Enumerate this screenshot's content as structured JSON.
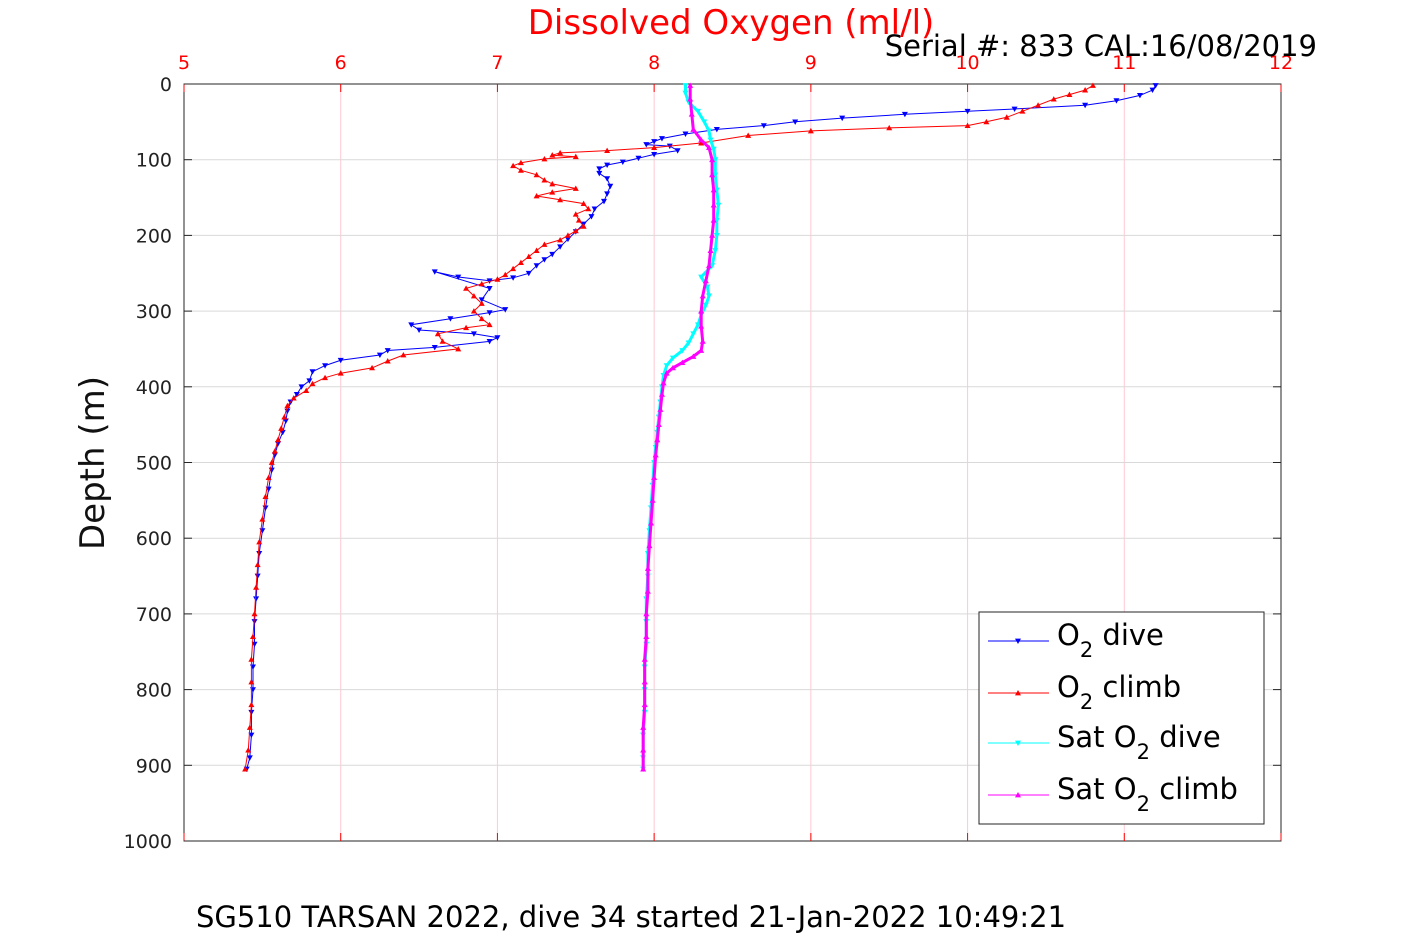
{
  "chart_data": {
    "type": "scatter",
    "title": "Dissolved Oxygen (ml/l)",
    "serial_label": "Serial #: 833  CAL:16/08/2019",
    "ylabel": "Depth (m)",
    "xlabel": "",
    "footer": "SG510 TARSAN 2022, dive 34 started 21-Jan-2022 10:49:21",
    "xlim": [
      5,
      12
    ],
    "ylim": [
      0,
      1000
    ],
    "y_reversed": true,
    "x_axis_position": "top",
    "x_ticks": [
      "5",
      "6",
      "7",
      "8",
      "9",
      "10",
      "11",
      "12"
    ],
    "y_ticks": [
      "0",
      "100",
      "200",
      "300",
      "400",
      "500",
      "600",
      "700",
      "800",
      "900",
      "1000"
    ],
    "x_grid_color": "#ffc8d4",
    "y_grid_color": "#d9d9d9",
    "legend_position": "bottom-right",
    "series": [
      {
        "name": "O2 dive",
        "legend_main": "O",
        "legend_sub": "2",
        "legend_rest": " dive",
        "color": "#0000ff",
        "marker": "triangle-down",
        "points": [
          [
            11.2,
            2
          ],
          [
            11.18,
            8
          ],
          [
            11.1,
            15
          ],
          [
            10.95,
            22
          ],
          [
            10.75,
            28
          ],
          [
            10.3,
            33
          ],
          [
            10.0,
            36
          ],
          [
            9.6,
            40
          ],
          [
            9.2,
            45
          ],
          [
            8.9,
            50
          ],
          [
            8.7,
            55
          ],
          [
            8.4,
            60
          ],
          [
            8.2,
            66
          ],
          [
            8.05,
            72
          ],
          [
            8.0,
            76
          ],
          [
            7.95,
            80
          ],
          [
            8.1,
            82
          ],
          [
            8.15,
            88
          ],
          [
            8.0,
            93
          ],
          [
            7.9,
            98
          ],
          [
            7.8,
            103
          ],
          [
            7.7,
            107
          ],
          [
            7.65,
            112
          ],
          [
            7.65,
            118
          ],
          [
            7.7,
            125
          ],
          [
            7.72,
            135
          ],
          [
            7.7,
            145
          ],
          [
            7.68,
            155
          ],
          [
            7.62,
            165
          ],
          [
            7.6,
            175
          ],
          [
            7.55,
            185
          ],
          [
            7.5,
            195
          ],
          [
            7.45,
            205
          ],
          [
            7.4,
            215
          ],
          [
            7.35,
            225
          ],
          [
            7.3,
            232
          ],
          [
            7.25,
            240
          ],
          [
            7.2,
            250
          ],
          [
            7.1,
            256
          ],
          [
            6.95,
            260
          ],
          [
            6.75,
            255
          ],
          [
            6.6,
            248
          ],
          [
            6.95,
            270
          ],
          [
            6.9,
            285
          ],
          [
            7.05,
            298
          ],
          [
            6.95,
            302
          ],
          [
            6.7,
            310
          ],
          [
            6.45,
            318
          ],
          [
            6.5,
            325
          ],
          [
            6.85,
            330
          ],
          [
            7.0,
            335
          ],
          [
            6.95,
            340
          ],
          [
            6.6,
            348
          ],
          [
            6.3,
            352
          ],
          [
            6.25,
            358
          ],
          [
            6.0,
            365
          ],
          [
            5.9,
            372
          ],
          [
            5.82,
            380
          ],
          [
            5.8,
            392
          ],
          [
            5.75,
            400
          ],
          [
            5.72,
            410
          ],
          [
            5.68,
            420
          ],
          [
            5.66,
            432
          ],
          [
            5.65,
            445
          ],
          [
            5.63,
            460
          ],
          [
            5.6,
            475
          ],
          [
            5.58,
            490
          ],
          [
            5.56,
            510
          ],
          [
            5.54,
            535
          ],
          [
            5.52,
            560
          ],
          [
            5.5,
            590
          ],
          [
            5.48,
            620
          ],
          [
            5.47,
            650
          ],
          [
            5.46,
            680
          ],
          [
            5.45,
            710
          ],
          [
            5.45,
            740
          ],
          [
            5.44,
            770
          ],
          [
            5.44,
            800
          ],
          [
            5.43,
            830
          ],
          [
            5.43,
            860
          ],
          [
            5.42,
            890
          ],
          [
            5.4,
            905
          ]
        ]
      },
      {
        "name": "O2 climb",
        "legend_main": "O",
        "legend_sub": "2",
        "legend_rest": " climb",
        "color": "#ff0000",
        "marker": "triangle-up",
        "points": [
          [
            10.8,
            2
          ],
          [
            10.75,
            8
          ],
          [
            10.65,
            14
          ],
          [
            10.55,
            20
          ],
          [
            10.45,
            28
          ],
          [
            10.35,
            36
          ],
          [
            10.25,
            44
          ],
          [
            10.12,
            50
          ],
          [
            10.0,
            55
          ],
          [
            9.5,
            58
          ],
          [
            9.0,
            62
          ],
          [
            8.6,
            68
          ],
          [
            8.3,
            78
          ],
          [
            8.0,
            84
          ],
          [
            7.7,
            88
          ],
          [
            7.4,
            91
          ],
          [
            7.35,
            94
          ],
          [
            7.5,
            96
          ],
          [
            7.3,
            99
          ],
          [
            7.15,
            104
          ],
          [
            7.1,
            108
          ],
          [
            7.15,
            114
          ],
          [
            7.25,
            120
          ],
          [
            7.3,
            127
          ],
          [
            7.35,
            132
          ],
          [
            7.5,
            138
          ],
          [
            7.35,
            143
          ],
          [
            7.25,
            148
          ],
          [
            7.4,
            153
          ],
          [
            7.55,
            158
          ],
          [
            7.58,
            165
          ],
          [
            7.5,
            172
          ],
          [
            7.52,
            180
          ],
          [
            7.55,
            188
          ],
          [
            7.5,
            194
          ],
          [
            7.45,
            200
          ],
          [
            7.4,
            206
          ],
          [
            7.3,
            212
          ],
          [
            7.25,
            220
          ],
          [
            7.2,
            228
          ],
          [
            7.15,
            236
          ],
          [
            7.1,
            244
          ],
          [
            7.05,
            252
          ],
          [
            7.0,
            258
          ],
          [
            6.9,
            264
          ],
          [
            6.8,
            270
          ],
          [
            6.85,
            280
          ],
          [
            6.9,
            290
          ],
          [
            6.85,
            300
          ],
          [
            6.9,
            310
          ],
          [
            6.95,
            318
          ],
          [
            6.8,
            322
          ],
          [
            6.62,
            330
          ],
          [
            6.65,
            340
          ],
          [
            6.75,
            350
          ],
          [
            6.4,
            358
          ],
          [
            6.3,
            366
          ],
          [
            6.2,
            375
          ],
          [
            6.0,
            382
          ],
          [
            5.9,
            388
          ],
          [
            5.82,
            396
          ],
          [
            5.78,
            405
          ],
          [
            5.7,
            415
          ],
          [
            5.66,
            425
          ],
          [
            5.64,
            440
          ],
          [
            5.62,
            455
          ],
          [
            5.6,
            470
          ],
          [
            5.58,
            485
          ],
          [
            5.56,
            500
          ],
          [
            5.54,
            520
          ],
          [
            5.52,
            545
          ],
          [
            5.5,
            575
          ],
          [
            5.48,
            605
          ],
          [
            5.47,
            635
          ],
          [
            5.46,
            665
          ],
          [
            5.45,
            700
          ],
          [
            5.44,
            730
          ],
          [
            5.43,
            760
          ],
          [
            5.43,
            790
          ],
          [
            5.43,
            820
          ],
          [
            5.42,
            850
          ],
          [
            5.41,
            880
          ],
          [
            5.39,
            905
          ]
        ]
      },
      {
        "name": "Sat O2 dive",
        "legend_main": "Sat O",
        "legend_sub": "2",
        "legend_rest": " dive",
        "color": "#00ffff",
        "marker": "triangle-down",
        "points": [
          [
            8.2,
            2
          ],
          [
            8.2,
            12
          ],
          [
            8.22,
            24
          ],
          [
            8.28,
            36
          ],
          [
            8.32,
            50
          ],
          [
            8.35,
            62
          ],
          [
            8.36,
            74
          ],
          [
            8.38,
            86
          ],
          [
            8.39,
            100
          ],
          [
            8.39,
            120
          ],
          [
            8.4,
            140
          ],
          [
            8.41,
            160
          ],
          [
            8.4,
            180
          ],
          [
            8.4,
            200
          ],
          [
            8.39,
            220
          ],
          [
            8.37,
            240
          ],
          [
            8.3,
            255
          ],
          [
            8.34,
            268
          ],
          [
            8.35,
            280
          ],
          [
            8.33,
            292
          ],
          [
            8.3,
            305
          ],
          [
            8.28,
            318
          ],
          [
            8.25,
            330
          ],
          [
            8.22,
            342
          ],
          [
            8.18,
            352
          ],
          [
            8.12,
            362
          ],
          [
            8.08,
            372
          ],
          [
            8.06,
            385
          ],
          [
            8.05,
            400
          ],
          [
            8.04,
            420
          ],
          [
            8.03,
            440
          ],
          [
            8.02,
            460
          ],
          [
            8.01,
            480
          ],
          [
            8.0,
            500
          ],
          [
            7.99,
            530
          ],
          [
            7.98,
            560
          ],
          [
            7.97,
            590
          ],
          [
            7.96,
            620
          ],
          [
            7.96,
            650
          ],
          [
            7.95,
            680
          ],
          [
            7.95,
            710
          ],
          [
            7.95,
            740
          ],
          [
            7.94,
            770
          ],
          [
            7.94,
            800
          ],
          [
            7.94,
            830
          ],
          [
            7.93,
            860
          ],
          [
            7.93,
            890
          ],
          [
            7.93,
            905
          ]
        ]
      },
      {
        "name": "Sat O2 climb",
        "legend_main": "Sat O",
        "legend_sub": "2",
        "legend_rest": " climb",
        "color": "#ff00ff",
        "marker": "triangle-up",
        "points": [
          [
            8.23,
            2
          ],
          [
            8.23,
            20
          ],
          [
            8.24,
            40
          ],
          [
            8.25,
            60
          ],
          [
            8.3,
            74
          ],
          [
            8.35,
            84
          ],
          [
            8.37,
            100
          ],
          [
            8.37,
            120
          ],
          [
            8.38,
            140
          ],
          [
            8.38,
            160
          ],
          [
            8.38,
            180
          ],
          [
            8.37,
            200
          ],
          [
            8.36,
            220
          ],
          [
            8.35,
            240
          ],
          [
            8.33,
            260
          ],
          [
            8.31,
            280
          ],
          [
            8.3,
            300
          ],
          [
            8.3,
            320
          ],
          [
            8.31,
            340
          ],
          [
            8.3,
            352
          ],
          [
            8.25,
            360
          ],
          [
            8.18,
            368
          ],
          [
            8.12,
            375
          ],
          [
            8.08,
            382
          ],
          [
            8.06,
            395
          ],
          [
            8.05,
            410
          ],
          [
            8.04,
            430
          ],
          [
            8.03,
            450
          ],
          [
            8.02,
            470
          ],
          [
            8.01,
            490
          ],
          [
            8.0,
            520
          ],
          [
            7.99,
            550
          ],
          [
            7.98,
            580
          ],
          [
            7.97,
            610
          ],
          [
            7.96,
            640
          ],
          [
            7.96,
            670
          ],
          [
            7.95,
            700
          ],
          [
            7.95,
            730
          ],
          [
            7.94,
            760
          ],
          [
            7.94,
            790
          ],
          [
            7.94,
            820
          ],
          [
            7.93,
            850
          ],
          [
            7.93,
            880
          ],
          [
            7.93,
            905
          ]
        ]
      }
    ]
  }
}
